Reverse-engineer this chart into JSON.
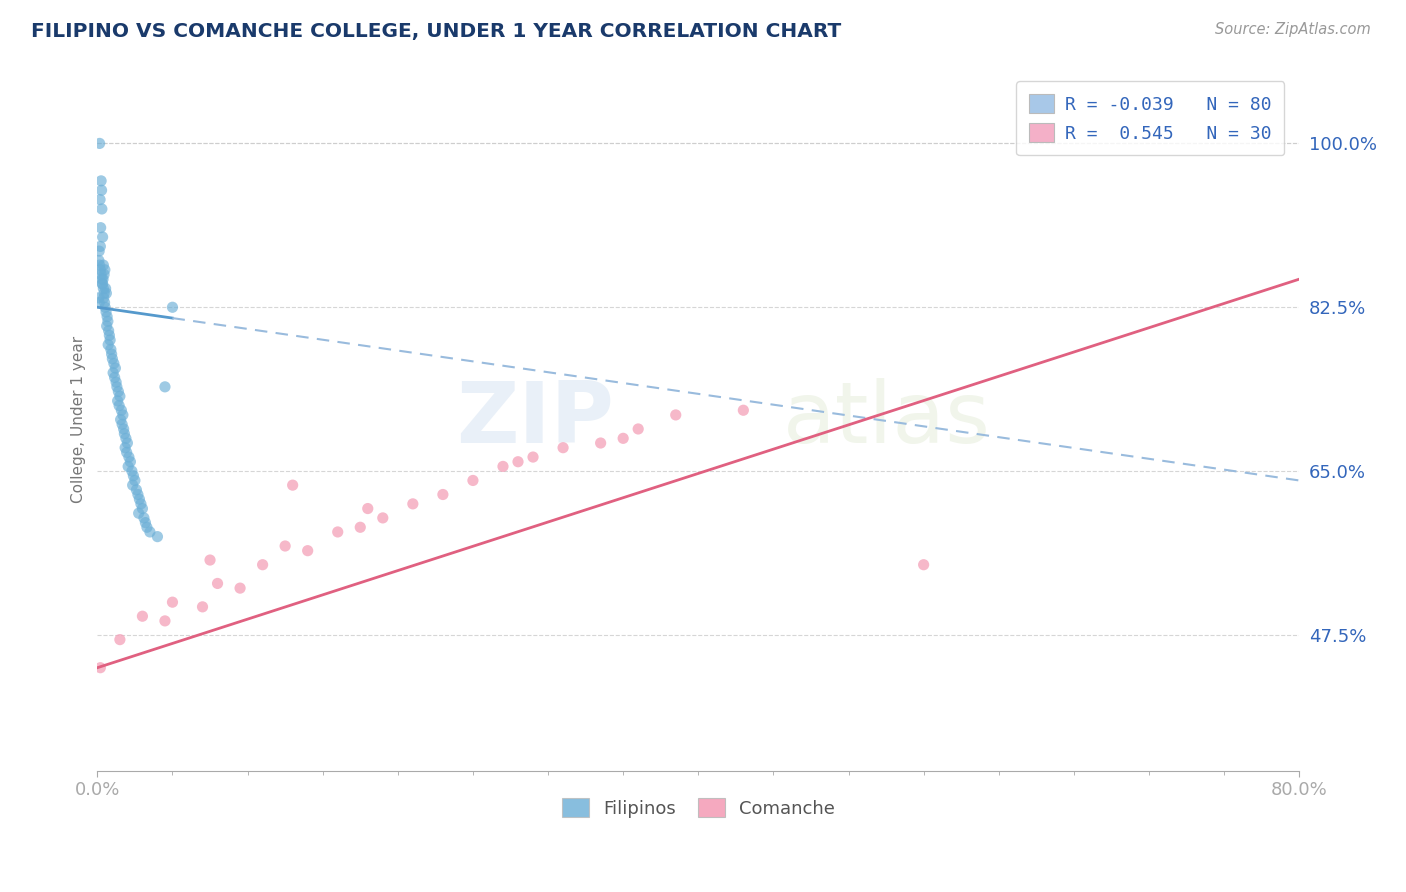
{
  "title": "FILIPINO VS COMANCHE COLLEGE, UNDER 1 YEAR CORRELATION CHART",
  "source_text": "Source: ZipAtlas.com",
  "ylabel": "College, Under 1 year",
  "xlim": [
    0.0,
    80.0
  ],
  "ylim": [
    33.0,
    108.0
  ],
  "yticks": [
    47.5,
    65.0,
    82.5,
    100.0
  ],
  "ytick_labels": [
    "47.5%",
    "65.0%",
    "82.5%",
    "100.0%"
  ],
  "xtick_labels": [
    "0.0%",
    "80.0%"
  ],
  "watermark_zip": "ZIP",
  "watermark_atlas": "atlas",
  "legend_r1": "R = -0.039",
  "legend_n1": "N = 80",
  "legend_r2": "R =  0.545",
  "legend_n2": "N = 30",
  "legend_color1": "#a8c8e8",
  "legend_color2": "#f4b0c8",
  "filipino_color": "#6aaed6",
  "comanche_color": "#f4a0b8",
  "blue_trendline_color": "#5599cc",
  "blue_trendline_dash_color": "#99bbdd",
  "pink_trendline_color": "#e06080",
  "grid_color": "#cccccc",
  "background_color": "#ffffff",
  "title_color": "#1a3a6b",
  "axis_tick_color": "#3366bb",
  "ylabel_color": "#777777",
  "source_color": "#999999",
  "bottom_label_color": "#555555",
  "fil_trendline_x0": 0.0,
  "fil_trendline_x1": 80.0,
  "fil_trendline_y0": 82.5,
  "fil_trendline_y1": 64.0,
  "com_trendline_x0": 0.0,
  "com_trendline_x1": 80.0,
  "com_trendline_y0": 44.0,
  "com_trendline_y1": 85.5,
  "filipino_scatter_x": [
    0.15,
    0.25,
    0.18,
    0.22,
    0.3,
    0.28,
    0.12,
    0.2,
    0.35,
    0.4,
    0.5,
    0.45,
    0.38,
    0.32,
    0.55,
    0.6,
    0.42,
    0.48,
    0.52,
    0.58,
    0.65,
    0.7,
    0.62,
    0.75,
    0.8,
    0.85,
    0.72,
    0.9,
    0.95,
    1.0,
    1.1,
    1.2,
    1.05,
    1.15,
    1.25,
    1.3,
    1.4,
    1.5,
    1.35,
    1.45,
    1.6,
    1.7,
    1.55,
    1.65,
    1.75,
    1.8,
    1.9,
    2.0,
    1.85,
    1.95,
    2.1,
    2.2,
    2.05,
    2.3,
    2.4,
    2.5,
    2.35,
    2.6,
    2.7,
    2.8,
    2.9,
    3.0,
    2.75,
    3.1,
    3.2,
    3.3,
    3.5,
    4.0,
    4.5,
    5.0,
    0.1,
    0.15,
    0.2,
    0.25,
    0.3,
    0.35,
    0.4,
    0.45,
    0.08,
    0.12
  ],
  "filipino_scatter_y": [
    100.0,
    96.0,
    94.0,
    91.0,
    93.0,
    95.0,
    88.5,
    89.0,
    90.0,
    87.0,
    86.5,
    86.0,
    85.5,
    85.0,
    84.5,
    84.0,
    83.5,
    83.0,
    82.5,
    82.0,
    81.5,
    81.0,
    80.5,
    80.0,
    79.5,
    79.0,
    78.5,
    78.0,
    77.5,
    77.0,
    76.5,
    76.0,
    75.5,
    75.0,
    74.5,
    74.0,
    73.5,
    73.0,
    72.5,
    72.0,
    71.5,
    71.0,
    70.5,
    70.0,
    69.5,
    69.0,
    68.5,
    68.0,
    67.5,
    67.0,
    66.5,
    66.0,
    65.5,
    65.0,
    64.5,
    64.0,
    63.5,
    63.0,
    62.5,
    62.0,
    61.5,
    61.0,
    60.5,
    60.0,
    59.5,
    59.0,
    58.5,
    58.0,
    74.0,
    82.5,
    87.5,
    87.0,
    86.5,
    86.0,
    85.5,
    85.0,
    84.5,
    84.0,
    83.5,
    83.0
  ],
  "comanche_scatter_x": [
    0.2,
    1.5,
    3.0,
    5.0,
    7.0,
    8.0,
    9.5,
    11.0,
    12.5,
    14.0,
    16.0,
    17.5,
    19.0,
    21.0,
    23.0,
    25.0,
    27.0,
    29.0,
    31.0,
    33.5,
    36.0,
    38.5,
    7.5,
    13.0,
    18.0,
    28.0,
    35.0,
    43.0,
    55.0,
    4.5
  ],
  "comanche_scatter_y": [
    44.0,
    47.0,
    49.5,
    51.0,
    50.5,
    53.0,
    52.5,
    55.0,
    57.0,
    56.5,
    58.5,
    59.0,
    60.0,
    61.5,
    62.5,
    64.0,
    65.5,
    66.5,
    67.5,
    68.0,
    69.5,
    71.0,
    55.5,
    63.5,
    61.0,
    66.0,
    68.5,
    71.5,
    55.0,
    49.0
  ]
}
